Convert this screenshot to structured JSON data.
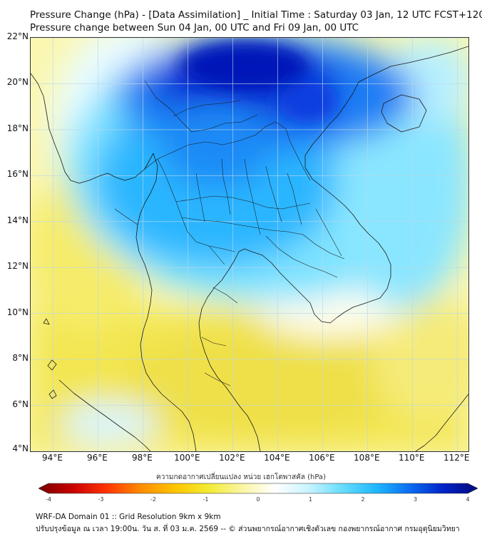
{
  "header": {
    "title_line1": "Pressure Change (hPa) - [Data Assimilation] _ Initial Time : Saturday 03 Jan, 12 UTC FCST+120",
    "title_line2": "Pressure change between Sun 04 Jan, 00 UTC and Fri 09 Jan, 00 UTC"
  },
  "map": {
    "lat_labels": [
      "22°N",
      "20°N",
      "18°N",
      "16°N",
      "14°N",
      "12°N",
      "10°N",
      "8°N",
      "6°N",
      "4°N"
    ],
    "lon_labels": [
      "94°E",
      "96°E",
      "98°E",
      "100°E",
      "102°E",
      "104°E",
      "106°E",
      "108°E",
      "110°E",
      "112°E"
    ],
    "lat_range": [
      4,
      22
    ],
    "lon_range": [
      93,
      112.5
    ]
  },
  "colorbar": {
    "title": "ความกดอากาศเปลี่ยนแปลง หน่วย เฮกโตพาสคัล (hPa)",
    "ticks": [
      "-4",
      "-3",
      "-2",
      "-1",
      "0",
      "1",
      "2",
      "3",
      "4"
    ],
    "range": [
      -4,
      4
    ],
    "colors": [
      "#7a0000",
      "#c80000",
      "#ff3300",
      "#ff8a00",
      "#ffc300",
      "#f2ea30",
      "#faf6a0",
      "#ffffff",
      "#c8f4ff",
      "#66dcff",
      "#1eb8ff",
      "#0a6cf0",
      "#0022c8",
      "#000a78"
    ]
  },
  "footer": {
    "line1": "WRF-DA Domain 01 :: Grid Resolution 9km x 9km",
    "line2": "ปรับปรุงข้อมูล ณ เวลา 19:00น. วัน ส. ที่ 03 ม.ค. 2569 -- © ส่วนพยากรณ์อากาศเชิงตัวเลข กองพยากรณ์อากาศ กรมอุตุนิยมวิทยา"
  }
}
